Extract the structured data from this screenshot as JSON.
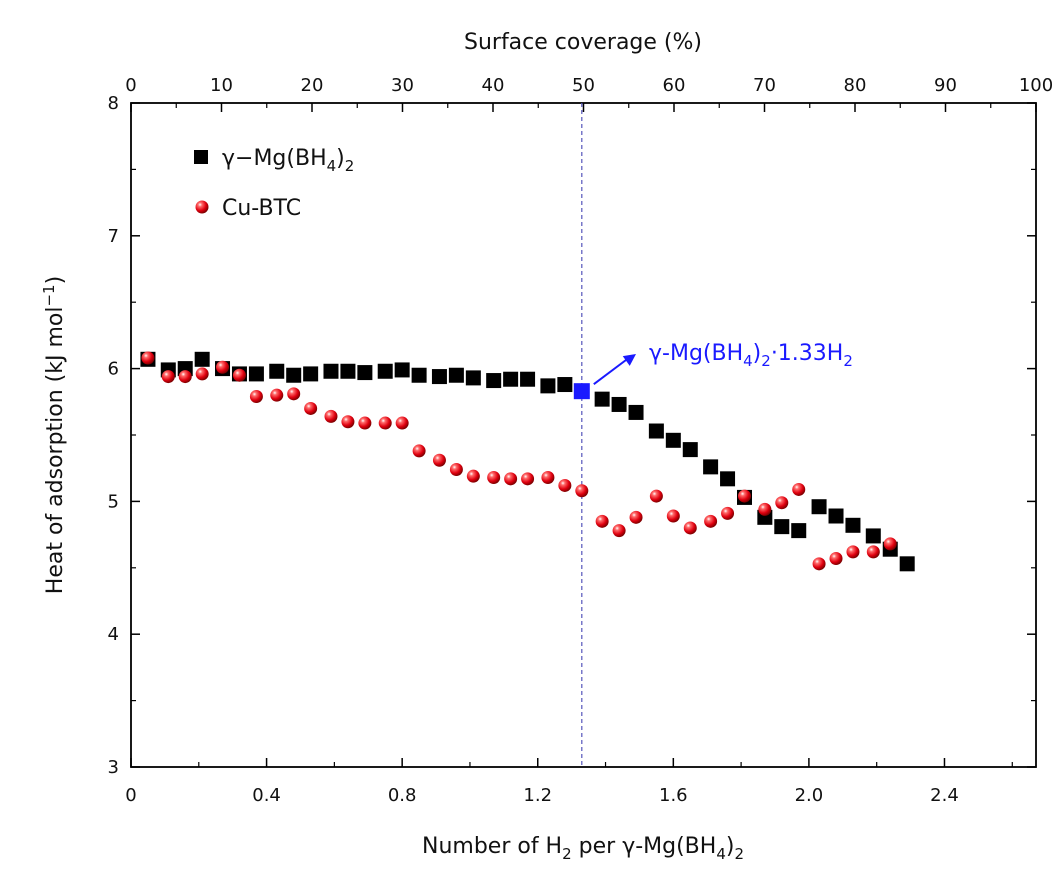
{
  "chart_data": {
    "type": "scatter",
    "xlabel_main": "Number of H",
    "xlabel_sub": "2",
    "xlabel_rest": " per γ-Mg(BH",
    "xlabel_sub2": "4",
    "xlabel_end": ")",
    "xlabel_sub3": "2",
    "xlim": [
      0,
      2.67
    ],
    "xticks": [
      0,
      0.4,
      0.8,
      1.2,
      1.6,
      2.0,
      2.4
    ],
    "xtick_labels": [
      "0",
      "0.4",
      "0.8",
      "1.2",
      "1.6",
      "2.0",
      "2.4"
    ],
    "top_axis_label": "Surface coverage (%)",
    "top_lim": [
      0,
      100
    ],
    "top_ticks": [
      0,
      10,
      20,
      30,
      40,
      50,
      60,
      70,
      80,
      90,
      100
    ],
    "top_tick_labels": [
      "0",
      "10",
      "20",
      "30",
      "40",
      "50",
      "60",
      "70",
      "80",
      "90",
      "100"
    ],
    "ylabel_main": "Heat of adsorption (kJ mol",
    "ylabel_sup": "−1",
    "ylabel_end": ")",
    "ylim": [
      3,
      8
    ],
    "yticks": [
      3,
      4,
      5,
      6,
      7,
      8
    ],
    "ytick_labels": [
      "3",
      "4",
      "5",
      "6",
      "7",
      "8"
    ],
    "reference_line_x": 1.33,
    "series": [
      {
        "name_main": "γ−Mg(BH",
        "name_sub": "4",
        "name_end": ")",
        "name_sub2": "2",
        "marker": "square",
        "color": "#000000",
        "points": [
          [
            0.05,
            6.07
          ],
          [
            0.11,
            5.99
          ],
          [
            0.16,
            6.0
          ],
          [
            0.21,
            6.07
          ],
          [
            0.27,
            6.0
          ],
          [
            0.32,
            5.96
          ],
          [
            0.37,
            5.96
          ],
          [
            0.43,
            5.98
          ],
          [
            0.48,
            5.95
          ],
          [
            0.53,
            5.96
          ],
          [
            0.59,
            5.98
          ],
          [
            0.64,
            5.98
          ],
          [
            0.69,
            5.97
          ],
          [
            0.75,
            5.98
          ],
          [
            0.8,
            5.99
          ],
          [
            0.85,
            5.95
          ],
          [
            0.91,
            5.94
          ],
          [
            0.96,
            5.95
          ],
          [
            1.01,
            5.93
          ],
          [
            1.07,
            5.91
          ],
          [
            1.12,
            5.92
          ],
          [
            1.17,
            5.92
          ],
          [
            1.23,
            5.87
          ],
          [
            1.28,
            5.88
          ],
          [
            1.39,
            5.77
          ],
          [
            1.44,
            5.73
          ],
          [
            1.49,
            5.67
          ],
          [
            1.55,
            5.53
          ],
          [
            1.6,
            5.46
          ],
          [
            1.65,
            5.39
          ],
          [
            1.71,
            5.26
          ],
          [
            1.76,
            5.17
          ],
          [
            1.81,
            5.03
          ],
          [
            1.87,
            4.88
          ],
          [
            1.92,
            4.81
          ],
          [
            1.97,
            4.78
          ],
          [
            2.03,
            4.96
          ],
          [
            2.08,
            4.89
          ],
          [
            2.13,
            4.82
          ],
          [
            2.19,
            4.74
          ],
          [
            2.24,
            4.64
          ],
          [
            2.29,
            4.53
          ]
        ]
      },
      {
        "name": "Cu-BTC",
        "marker": "circle",
        "color": "#e3001b",
        "points": [
          [
            0.05,
            6.08
          ],
          [
            0.11,
            5.94
          ],
          [
            0.16,
            5.94
          ],
          [
            0.21,
            5.96
          ],
          [
            0.27,
            6.01
          ],
          [
            0.32,
            5.95
          ],
          [
            0.37,
            5.79
          ],
          [
            0.43,
            5.8
          ],
          [
            0.48,
            5.81
          ],
          [
            0.53,
            5.7
          ],
          [
            0.59,
            5.64
          ],
          [
            0.64,
            5.6
          ],
          [
            0.69,
            5.59
          ],
          [
            0.75,
            5.59
          ],
          [
            0.8,
            5.59
          ],
          [
            0.85,
            5.38
          ],
          [
            0.91,
            5.31
          ],
          [
            0.96,
            5.24
          ],
          [
            1.01,
            5.19
          ],
          [
            1.07,
            5.18
          ],
          [
            1.12,
            5.17
          ],
          [
            1.17,
            5.17
          ],
          [
            1.23,
            5.18
          ],
          [
            1.28,
            5.12
          ],
          [
            1.33,
            5.08
          ],
          [
            1.39,
            4.85
          ],
          [
            1.44,
            4.78
          ],
          [
            1.49,
            4.88
          ],
          [
            1.55,
            5.04
          ],
          [
            1.6,
            4.89
          ],
          [
            1.65,
            4.8
          ],
          [
            1.71,
            4.85
          ],
          [
            1.76,
            4.91
          ],
          [
            1.81,
            5.04
          ],
          [
            1.87,
            4.94
          ],
          [
            1.92,
            4.99
          ],
          [
            1.97,
            5.09
          ],
          [
            2.03,
            4.53
          ],
          [
            2.08,
            4.57
          ],
          [
            2.13,
            4.62
          ],
          [
            2.19,
            4.62
          ],
          [
            2.24,
            4.68
          ]
        ]
      }
    ],
    "highlight_point": {
      "x": 1.33,
      "y": 5.83,
      "color": "#1a1aff",
      "label_main": "γ-Mg(BH",
      "label_sub": "4",
      "label_mid": ")",
      "label_sub2": "2",
      "label_rest": "·1.33H",
      "label_sub3": "2"
    }
  }
}
